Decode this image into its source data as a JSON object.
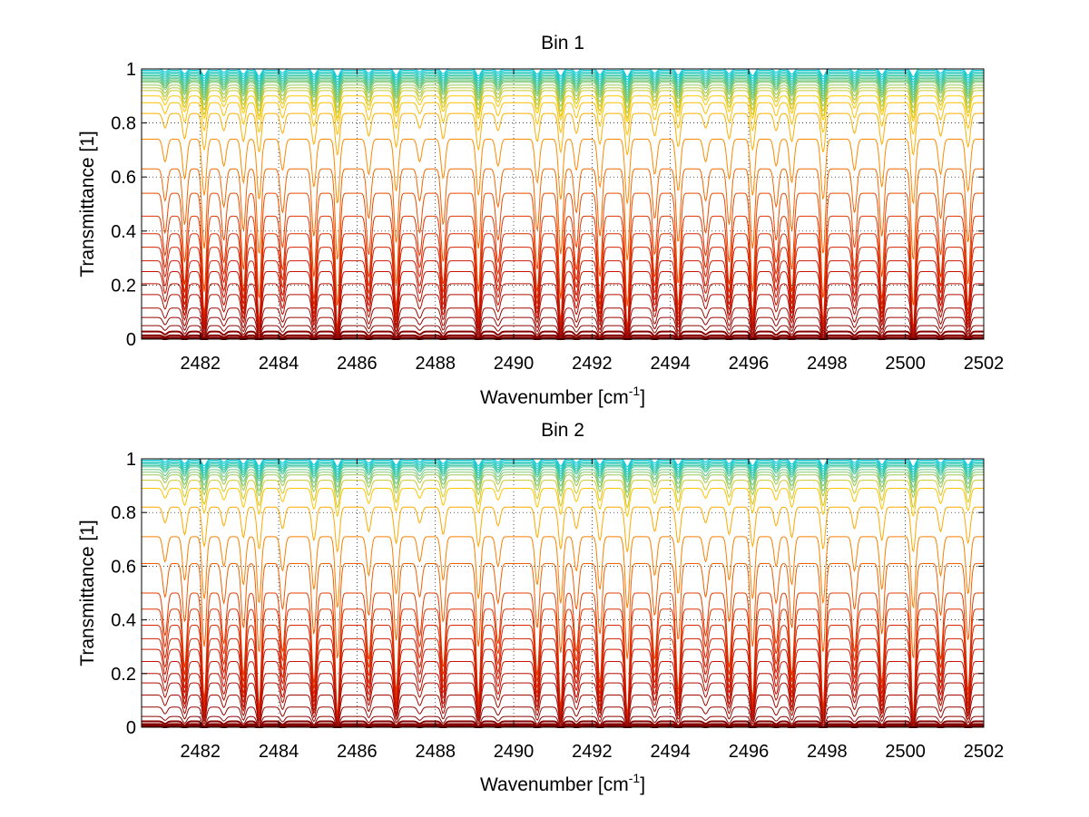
{
  "chart_data": [
    {
      "type": "line",
      "title": "Bin 1",
      "xlabel": "Wavenumber [cm",
      "xlabel_sup": "-1",
      "xlabel_end": "]",
      "ylabel": "Transmittance [1]",
      "xlim": [
        2480.5,
        2502
      ],
      "ylim": [
        0,
        1
      ],
      "xticks": [
        2482,
        2484,
        2486,
        2488,
        2490,
        2492,
        2494,
        2496,
        2498,
        2500,
        2502
      ],
      "yticks": [
        0,
        0.2,
        0.4,
        0.6,
        0.8,
        1
      ],
      "ytick_labels": [
        "0",
        "0.2",
        "0.4",
        "0.6",
        "0.8",
        "1"
      ],
      "grid": true,
      "line_baselines": [
        1.0,
        0.995,
        0.99,
        0.985,
        0.98,
        0.975,
        0.97,
        0.965,
        0.96,
        0.955,
        0.95,
        0.94,
        0.93,
        0.92,
        0.9,
        0.875,
        0.835,
        0.74,
        0.63,
        0.54,
        0.455,
        0.39,
        0.34,
        0.29,
        0.25,
        0.205,
        0.165,
        0.115,
        0.08,
        0.05,
        0.028,
        0.014,
        0.006,
        0.002
      ],
      "absorption_lines": [
        2481.1,
        2481.6,
        2482.1,
        2482.6,
        2483.1,
        2483.5,
        2484.1,
        2484.9,
        2485.5,
        2486.3,
        2487.0,
        2487.6,
        2488.2,
        2489.1,
        2489.6,
        2490.6,
        2491.2,
        2491.6,
        2492.2,
        2492.9,
        2493.6,
        2494.2,
        2494.9,
        2495.5,
        2496.1,
        2496.7,
        2497.1,
        2497.9,
        2498.7,
        2499.4,
        2500.2,
        2500.9,
        2501.6
      ]
    },
    {
      "type": "line",
      "title": "Bin 2",
      "xlabel": "Wavenumber [cm",
      "xlabel_sup": "-1",
      "xlabel_end": "]",
      "ylabel": "Transmittance [1]",
      "xlim": [
        2480.5,
        2502
      ],
      "ylim": [
        0,
        1
      ],
      "xticks": [
        2482,
        2484,
        2486,
        2488,
        2490,
        2492,
        2494,
        2496,
        2498,
        2500,
        2502
      ],
      "yticks": [
        0,
        0.2,
        0.4,
        0.6,
        0.8,
        1
      ],
      "ytick_labels": [
        "0",
        "0.2",
        "0.4",
        "0.6",
        "0.8",
        "1"
      ],
      "grid": true,
      "line_baselines": [
        1.0,
        0.995,
        0.99,
        0.985,
        0.98,
        0.975,
        0.97,
        0.96,
        0.95,
        0.94,
        0.92,
        0.89,
        0.82,
        0.71,
        0.61,
        0.5,
        0.44,
        0.38,
        0.33,
        0.29,
        0.245,
        0.2,
        0.165,
        0.12,
        0.075,
        0.04,
        0.022,
        0.012,
        0.005,
        0.002
      ],
      "absorption_lines": [
        2481.1,
        2481.6,
        2482.1,
        2482.6,
        2483.1,
        2483.5,
        2484.1,
        2484.9,
        2485.5,
        2486.3,
        2487.0,
        2487.6,
        2488.2,
        2489.1,
        2489.6,
        2490.6,
        2491.2,
        2491.6,
        2492.2,
        2492.9,
        2493.6,
        2494.2,
        2494.9,
        2495.5,
        2496.1,
        2496.7,
        2497.1,
        2497.9,
        2498.7,
        2499.4,
        2500.2,
        2500.9,
        2501.6
      ]
    }
  ]
}
